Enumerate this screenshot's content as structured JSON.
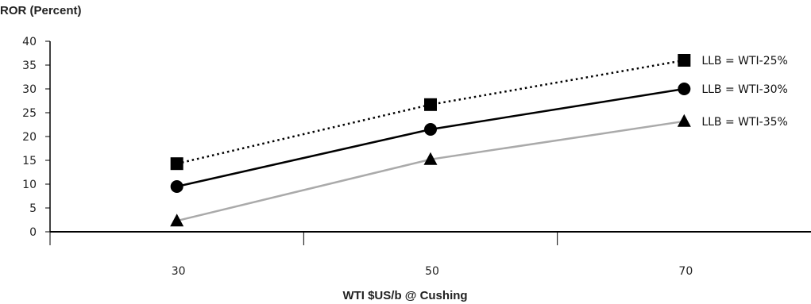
{
  "chart_data": {
    "type": "line",
    "ylabel": "ROR (Percent)",
    "xlabel": "WTI $US/b @ Cushing",
    "ylim": [
      0,
      40
    ],
    "yticks": [
      0,
      5,
      10,
      15,
      20,
      25,
      30,
      35,
      40
    ],
    "xlim": [
      20,
      80
    ],
    "xtick_labels": [
      "30",
      "50",
      "70"
    ],
    "x": [
      30,
      50,
      70
    ],
    "grid": false,
    "legend_placement": "inline, right end of each line",
    "series": [
      {
        "name": "LLB = WTI-25%",
        "values": [
          14.3,
          26.7,
          36.0
        ],
        "color": "#000000",
        "line_style": "dotted",
        "marker": "square"
      },
      {
        "name": "LLB = WTI-30%",
        "values": [
          9.5,
          21.5,
          30.0
        ],
        "color": "#000000",
        "line_style": "solid",
        "marker": "circle"
      },
      {
        "name": "LLB = WTI-35%",
        "values": [
          2.3,
          15.2,
          23.2
        ],
        "color": "#aaaaaa",
        "line_style": "solid",
        "marker": "triangle"
      }
    ]
  }
}
